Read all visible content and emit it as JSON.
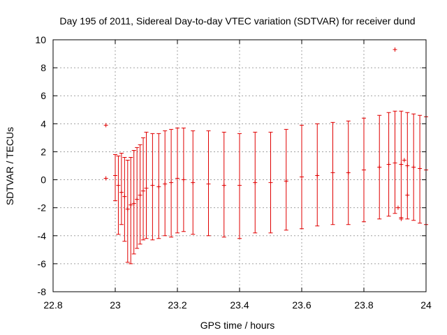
{
  "chart_data": {
    "type": "scatter",
    "title": "Day 195 of 2011, Sidereal Day-to-day VTEC variation (SDTVAR) for receiver dund",
    "xlabel": "GPS time / hours",
    "ylabel": "SDTVAR / TECUs",
    "xlim": [
      22.8,
      24.0
    ],
    "ylim": [
      -8,
      10
    ],
    "xticks": [
      22.8,
      23.0,
      23.2,
      23.4,
      23.6,
      23.8,
      24.0
    ],
    "xtick_labels": [
      "22.8",
      "23",
      "23.2",
      "23.4",
      "23.6",
      "23.8",
      "24"
    ],
    "yticks": [
      -8,
      -6,
      -4,
      -2,
      0,
      2,
      4,
      6,
      8,
      10
    ],
    "ytick_labels": [
      "-8",
      "-6",
      "-4",
      "-2",
      "0",
      "2",
      "4",
      "6",
      "8",
      "10"
    ],
    "grid": true,
    "legend": "none",
    "color": "#e00000",
    "series": [
      {
        "x": [
          23.0,
          23.01,
          23.02,
          23.03,
          23.04,
          23.05,
          23.06,
          23.07,
          23.08,
          23.09,
          23.1,
          23.12,
          23.14,
          23.16,
          23.18,
          23.2,
          23.22,
          23.25,
          23.3,
          23.35,
          23.4,
          23.45,
          23.5,
          23.55,
          23.6,
          23.65,
          23.7,
          23.75,
          23.8,
          23.85,
          23.88,
          23.9,
          23.92,
          23.94,
          23.96,
          23.98,
          24.0
        ],
        "y": [
          0.3,
          -0.4,
          -0.9,
          -1.2,
          -2.1,
          -1.8,
          -1.7,
          -1.4,
          -1.1,
          -0.8,
          -0.6,
          -0.4,
          -0.5,
          -0.3,
          -0.2,
          0.1,
          0.0,
          -0.2,
          -0.3,
          -0.4,
          -0.4,
          -0.2,
          -0.2,
          -0.1,
          0.2,
          0.3,
          0.5,
          0.5,
          0.7,
          0.9,
          1.1,
          1.2,
          1.1,
          1.0,
          0.9,
          0.8,
          0.7
        ],
        "upper": [
          1.8,
          1.7,
          1.9,
          1.6,
          1.4,
          1.6,
          2.1,
          2.3,
          2.5,
          3.0,
          3.4,
          3.3,
          3.3,
          3.5,
          3.6,
          3.7,
          3.7,
          3.5,
          3.5,
          3.4,
          3.3,
          3.4,
          3.4,
          3.6,
          3.9,
          4.0,
          4.1,
          4.2,
          4.4,
          4.6,
          4.8,
          4.9,
          4.9,
          4.8,
          4.7,
          4.6,
          4.5
        ],
        "lower": [
          -1.5,
          -3.9,
          -3.2,
          -4.4,
          -5.9,
          -6.0,
          -5.3,
          -4.9,
          -4.6,
          -4.3,
          -4.2,
          -4.3,
          -4.2,
          -4.0,
          -4.1,
          -3.8,
          -3.7,
          -3.9,
          -4.0,
          -4.1,
          -4.2,
          -3.8,
          -3.8,
          -3.6,
          -3.5,
          -3.3,
          -3.2,
          -3.2,
          -3.0,
          -2.8,
          -2.6,
          -2.4,
          -2.7,
          -2.8,
          -2.9,
          -3.1,
          -3.2
        ]
      },
      {
        "x": [
          22.97,
          22.97,
          23.9,
          23.91,
          23.92,
          23.93,
          23.94
        ],
        "y": [
          3.9,
          0.1,
          9.3,
          -2.0,
          -2.8,
          1.4,
          -1.1
        ]
      }
    ]
  }
}
